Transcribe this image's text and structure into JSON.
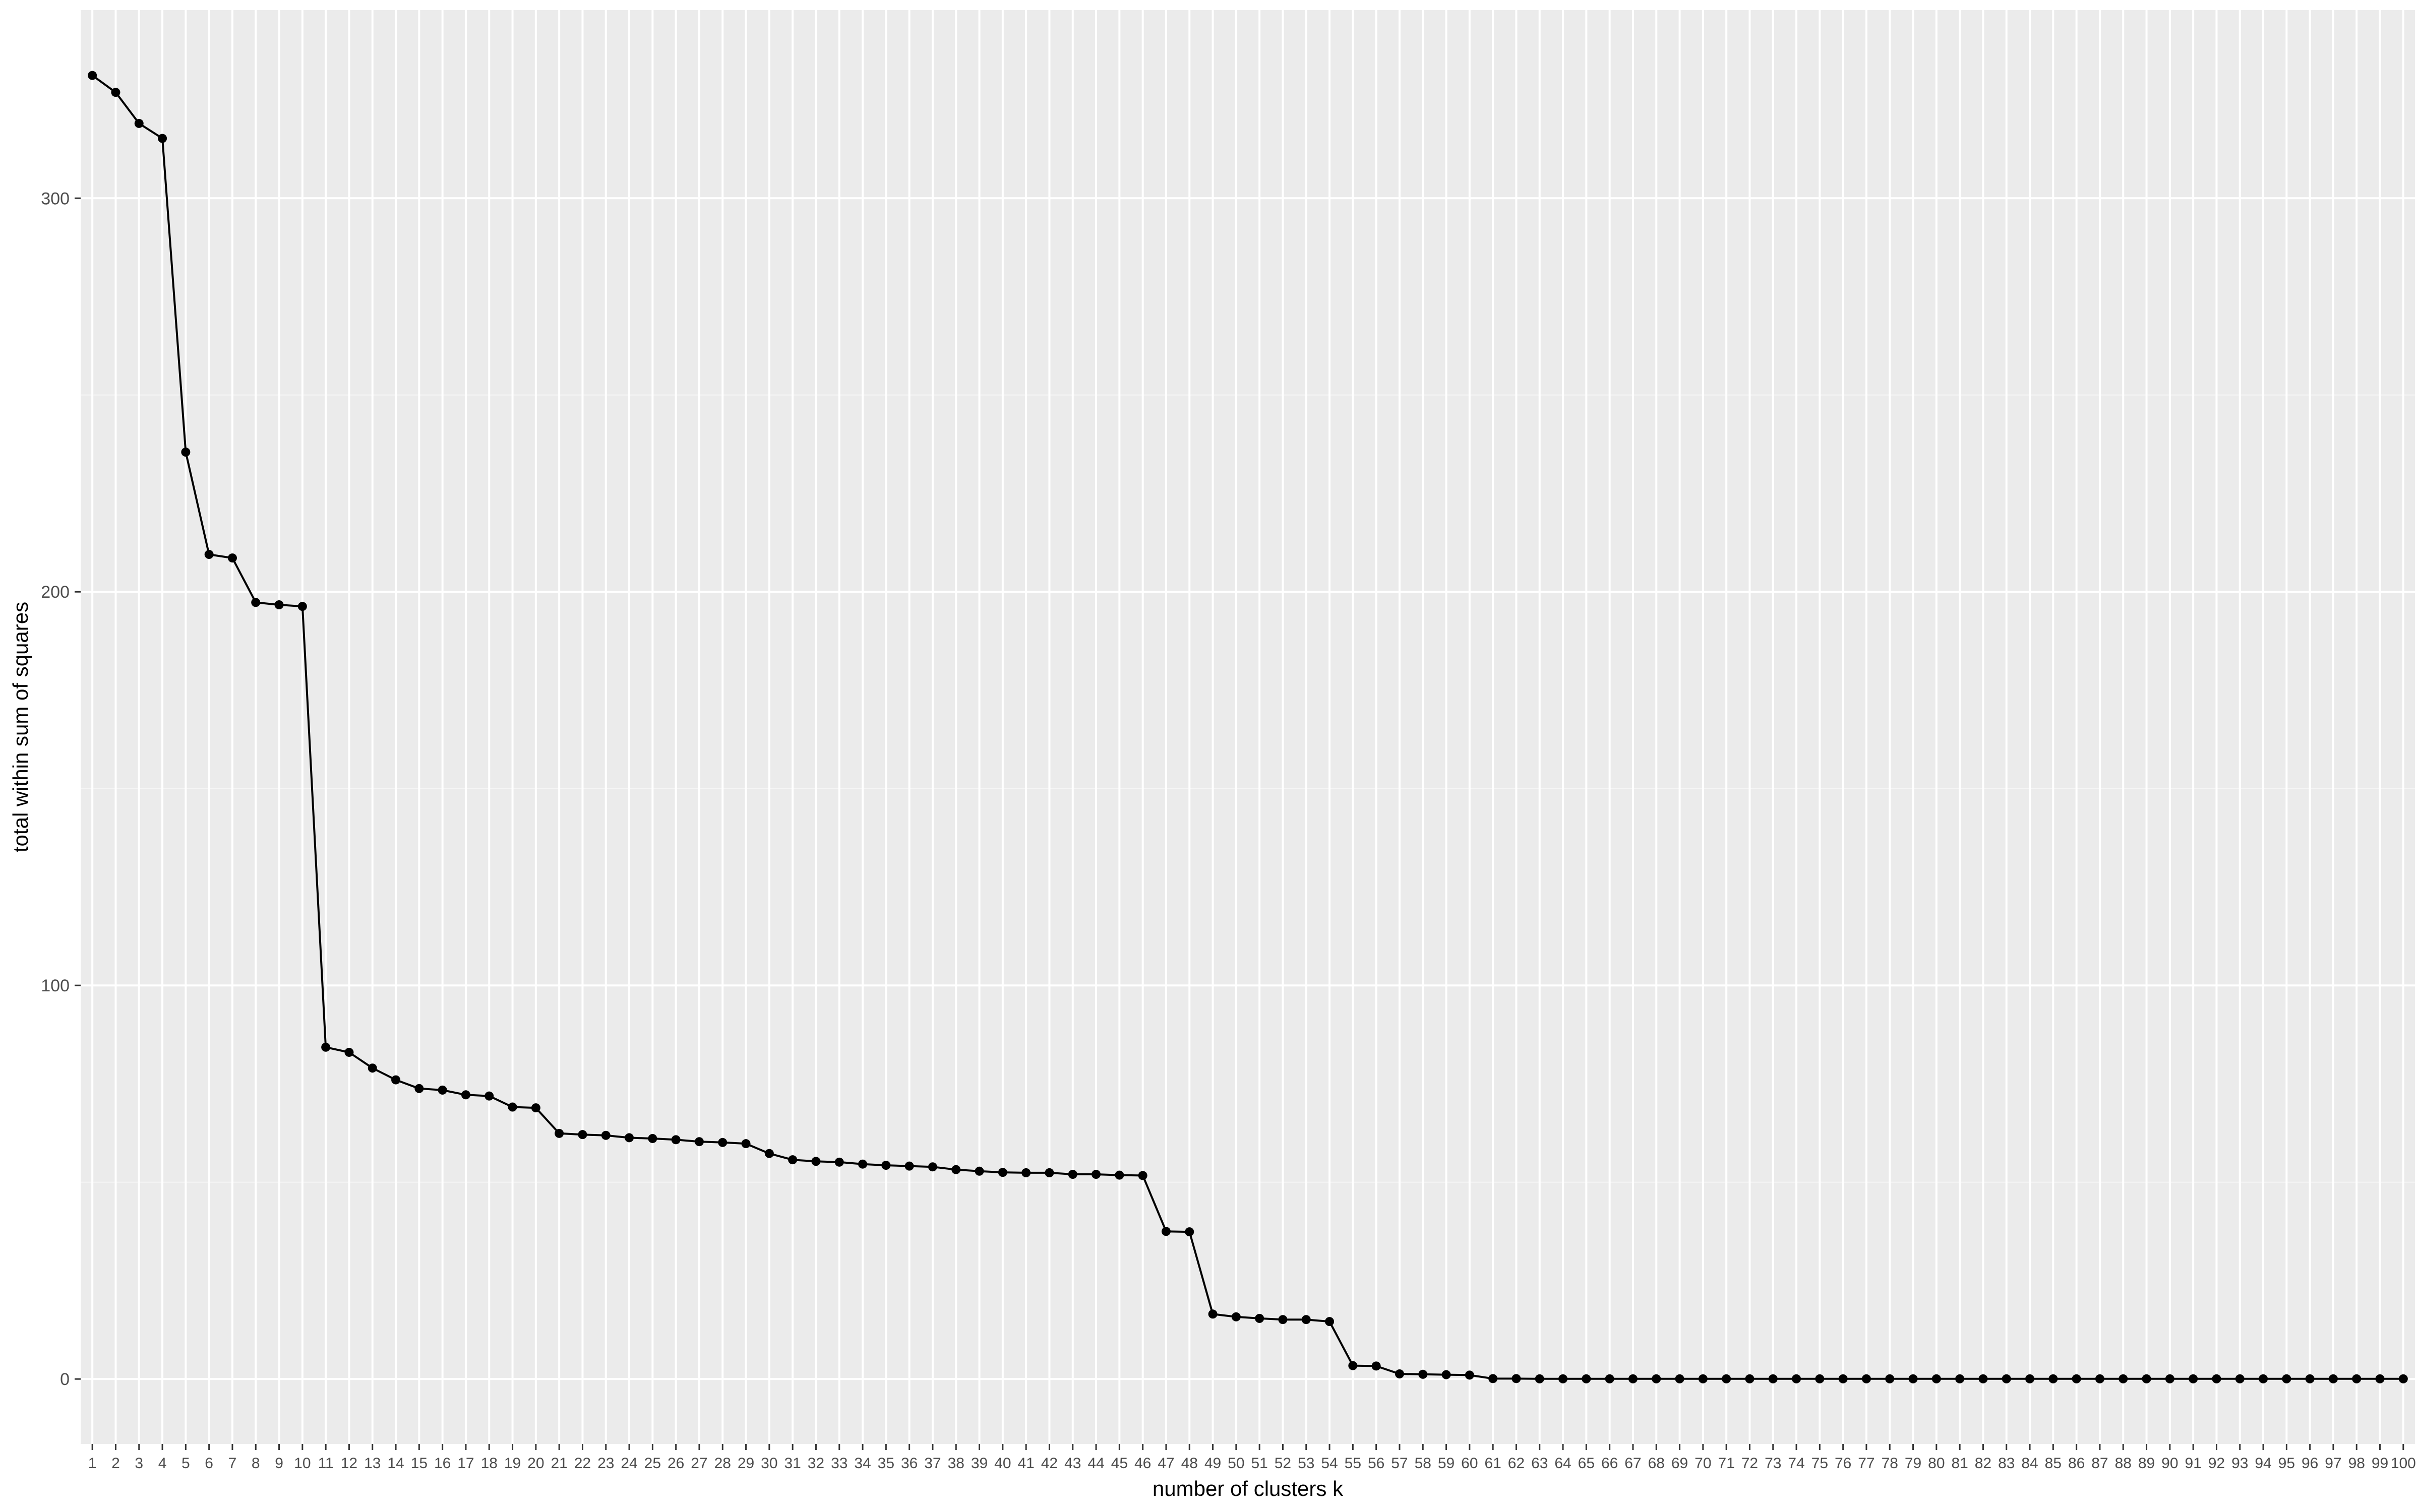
{
  "chart_data": {
    "type": "line",
    "title": "",
    "xlabel": "number of clusters k",
    "ylabel": "total within sum of squares",
    "x": [
      1,
      2,
      3,
      4,
      5,
      6,
      7,
      8,
      9,
      10,
      11,
      12,
      13,
      14,
      15,
      16,
      17,
      18,
      19,
      20,
      21,
      22,
      23,
      24,
      25,
      26,
      27,
      28,
      29,
      30,
      31,
      32,
      33,
      34,
      35,
      36,
      37,
      38,
      39,
      40,
      41,
      42,
      43,
      44,
      45,
      46,
      47,
      48,
      49,
      50,
      51,
      52,
      53,
      54,
      55,
      56,
      57,
      58,
      59,
      60,
      61,
      62,
      63,
      64,
      65,
      66,
      67,
      68,
      69,
      70,
      71,
      72,
      73,
      74,
      75,
      76,
      77,
      78,
      79,
      80,
      81,
      82,
      83,
      84,
      85,
      86,
      87,
      88,
      89,
      90,
      91,
      92,
      93,
      94,
      95,
      96,
      97,
      98,
      99,
      100
    ],
    "y": [
      331.2,
      326.9,
      319.0,
      315.2,
      235.5,
      209.5,
      208.6,
      197.3,
      196.7,
      196.3,
      84.3,
      83.0,
      79.0,
      76.0,
      73.8,
      73.4,
      72.2,
      71.9,
      69.1,
      68.9,
      62.4,
      62.1,
      61.9,
      61.3,
      61.1,
      60.8,
      60.3,
      60.1,
      59.8,
      57.3,
      55.7,
      55.3,
      55.1,
      54.6,
      54.3,
      54.1,
      53.9,
      53.2,
      52.8,
      52.5,
      52.4,
      52.4,
      52.0,
      52.0,
      51.8,
      51.7,
      37.5,
      37.4,
      16.5,
      15.8,
      15.4,
      15.1,
      15.1,
      14.6,
      3.4,
      3.3,
      1.3,
      1.2,
      1.1,
      1.0,
      0.1,
      0.1,
      0.05,
      0.05,
      0.05,
      0.05,
      0.05,
      0.05,
      0.05,
      0.05,
      0.05,
      0.05,
      0.05,
      0.05,
      0.05,
      0.05,
      0.05,
      0.05,
      0.05,
      0.05,
      0.05,
      0.05,
      0.05,
      0.05,
      0.05,
      0.05,
      0.05,
      0.05,
      0.05,
      0.05,
      0.05,
      0.05,
      0.05,
      0.05,
      0.05,
      0.05,
      0.05,
      0.05,
      0.05,
      0.05
    ],
    "xlim": [
      0.5,
      100.5
    ],
    "ylim": [
      -16.5,
      347.8
    ],
    "y_ticks": [
      0,
      100,
      200,
      300
    ],
    "y_tick_labels": [
      "0",
      "100",
      "200",
      "300"
    ],
    "grid": true,
    "legend": "none",
    "colors": {
      "panel_background": "#ebebeb",
      "grid_major": "#ffffff",
      "grid_minor": "#f5f5f5",
      "line": "#000000",
      "point": "#000000",
      "tick_label": "#4d4d4d",
      "axis_title": "#000000"
    }
  }
}
